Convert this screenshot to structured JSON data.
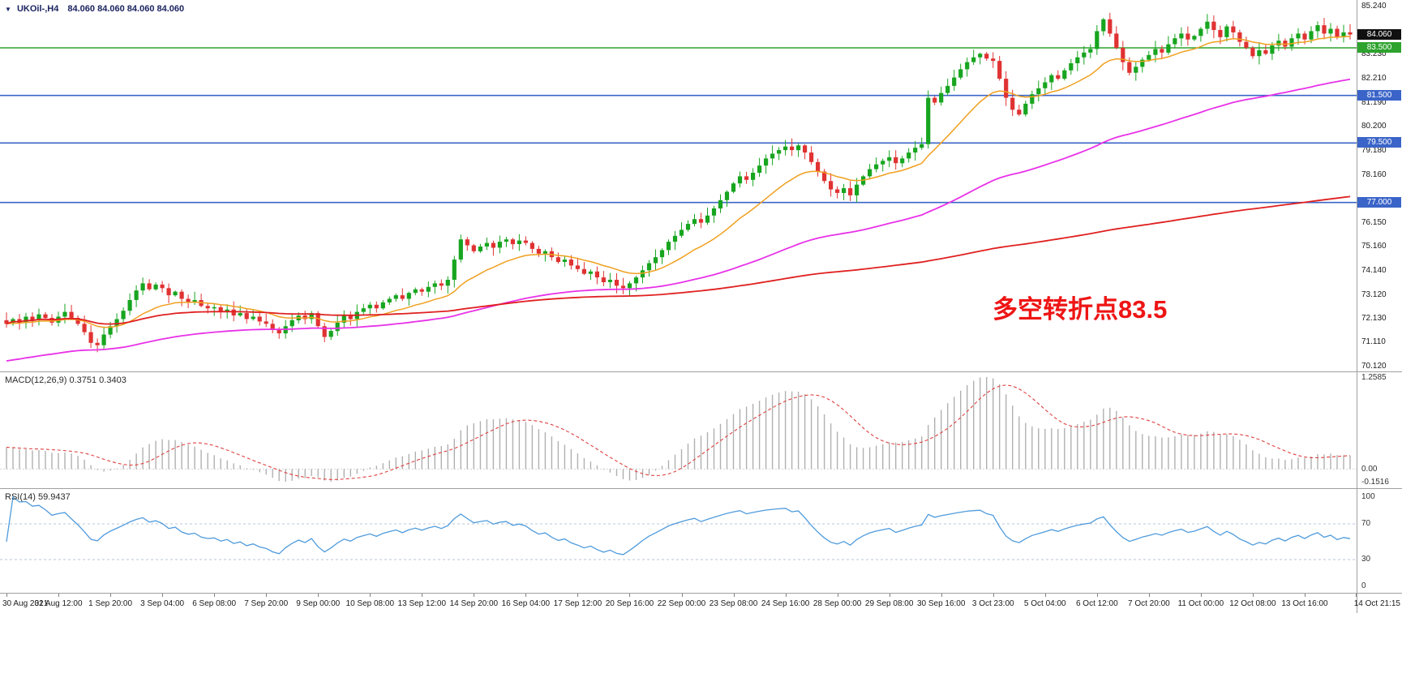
{
  "title_bar": {
    "collapse_icon": "▼",
    "symbol": "UKOil-,H4",
    "ohlc": "84.060 84.060 84.060 84.060"
  },
  "colors": {
    "candle_up": "#17a51f",
    "candle_down": "#e03232",
    "ma_fast": "#f0a020",
    "ma_mid": "#e832e8",
    "ma_slow": "#e02020",
    "macd_bars": "#b0b0b0",
    "macd_signal": "#e04040",
    "rsi_line": "#4f9bdc",
    "green_line": "#2da32d",
    "blue_line": "#3a64c8",
    "current_price_badge": "#101010"
  },
  "main_chart": {
    "annotation": {
      "text": "多空转折点83.5",
      "color": "#ee1515"
    },
    "price_scale": {
      "top": 85.51,
      "bottom": 69.9
    },
    "horizontal_lines": [
      {
        "price": 83.5,
        "label": "83.500",
        "color": "#2da32d"
      },
      {
        "price": 81.5,
        "label": "81.500",
        "color": "#3a64c8"
      },
      {
        "price": 79.5,
        "label": "79.500",
        "color": "#3a64c8"
      },
      {
        "price": 77.0,
        "label": "77.000",
        "color": "#3a64c8"
      }
    ],
    "badges": [
      {
        "label": "84.060",
        "price": 84.06,
        "color": "#101010"
      },
      {
        "label": "83.500",
        "price": 83.5,
        "color": "#2da32d"
      },
      {
        "label": "81.500",
        "price": 81.5,
        "color": "#3a64c8"
      },
      {
        "label": "79.500",
        "price": 79.5,
        "color": "#3a64c8"
      },
      {
        "label": "77.000",
        "price": 77.0,
        "color": "#3a64c8"
      }
    ],
    "price_axis_labels": [
      "85.240",
      "83.230",
      "82.210",
      "81.190",
      "80.200",
      "79.180",
      "78.160",
      "76.150",
      "75.160",
      "74.140",
      "73.120",
      "72.130",
      "71.110",
      "70.120"
    ]
  },
  "macd_panel": {
    "label": "MACD(12,26,9)",
    "values": "0.3751 0.3403",
    "axis_labels": {
      "max": "1.2585",
      "zero": "0.00",
      "min": "-0.1516"
    }
  },
  "rsi_panel": {
    "label": "RSI(14)",
    "value": "59.9437",
    "levels": [
      70,
      30
    ],
    "axis_labels": [
      "100",
      "70",
      "30",
      "0"
    ]
  },
  "time_axis": {
    "labels": [
      "30 Aug 2021",
      "31 Aug 12:00",
      "1 Sep 20:00",
      "3 Sep 04:00",
      "6 Sep 08:00",
      "7 Sep 20:00",
      "9 Sep 00:00",
      "10 Sep 08:00",
      "13 Sep 12:00",
      "14 Sep 20:00",
      "16 Sep 04:00",
      "17 Sep 12:00",
      "20 Sep 16:00",
      "22 Sep 00:00",
      "23 Sep 08:00",
      "24 Sep 16:00",
      "28 Sep 00:00",
      "29 Sep 08:00",
      "30 Sep 16:00",
      "3 Oct 23:00",
      "5 Oct 04:00",
      "6 Oct 12:00",
      "7 Oct 20:00",
      "11 Oct 00:00",
      "12 Oct 08:00",
      "13 Oct 16:00",
      "14 Oct 21:15"
    ]
  },
  "chart_data": {
    "type": "candlestick",
    "symbol": "UKOil-",
    "timeframe": "H4",
    "last_price": 84.06,
    "candles_per_label": 8,
    "ylim": [
      69.9,
      85.51
    ],
    "closes": [
      71.9,
      72.1,
      71.95,
      72.2,
      72.05,
      72.3,
      72.15,
      71.95,
      72.2,
      72.4,
      72.15,
      71.9,
      71.55,
      71.1,
      71.0,
      71.45,
      71.8,
      72.1,
      72.45,
      72.9,
      73.3,
      73.6,
      73.35,
      73.55,
      73.4,
      73.1,
      73.25,
      72.95,
      72.8,
      72.9,
      72.65,
      72.55,
      72.6,
      72.4,
      72.5,
      72.25,
      72.35,
      72.1,
      72.2,
      72.0,
      71.9,
      71.65,
      71.5,
      71.8,
      72.05,
      72.25,
      72.1,
      72.35,
      71.8,
      71.35,
      71.6,
      71.95,
      72.25,
      72.1,
      72.4,
      72.55,
      72.7,
      72.55,
      72.8,
      72.95,
      73.1,
      72.95,
      73.2,
      73.35,
      73.25,
      73.45,
      73.6,
      73.5,
      73.75,
      74.6,
      75.45,
      75.2,
      74.95,
      75.15,
      75.3,
      75.1,
      75.35,
      75.45,
      75.25,
      75.4,
      75.3,
      75.05,
      74.85,
      74.95,
      74.7,
      74.5,
      74.6,
      74.35,
      74.2,
      74.0,
      74.1,
      73.85,
      73.65,
      73.75,
      73.5,
      73.4,
      73.6,
      73.85,
      74.15,
      74.45,
      74.7,
      75.0,
      75.35,
      75.6,
      75.85,
      76.1,
      76.3,
      76.15,
      76.45,
      76.75,
      77.1,
      77.45,
      77.8,
      78.1,
      77.95,
      78.25,
      78.55,
      78.85,
      79.05,
      79.2,
      79.35,
      79.2,
      79.4,
      79.1,
      78.7,
      78.3,
      77.9,
      77.55,
      77.4,
      77.6,
      77.3,
      77.75,
      78.1,
      78.4,
      78.6,
      78.75,
      78.9,
      78.65,
      78.85,
      79.1,
      79.3,
      79.45,
      81.4,
      81.2,
      81.6,
      81.9,
      82.25,
      82.6,
      82.9,
      83.1,
      83.25,
      83.05,
      82.95,
      82.2,
      81.4,
      80.9,
      80.7,
      81.15,
      81.55,
      81.8,
      82.05,
      82.35,
      82.2,
      82.55,
      82.85,
      83.1,
      83.3,
      83.45,
      84.2,
      84.7,
      84.1,
      83.5,
      82.9,
      82.45,
      82.7,
      83.0,
      83.2,
      83.45,
      83.3,
      83.65,
      83.9,
      84.1,
      83.85,
      84.0,
      84.3,
      84.6,
      84.25,
      83.95,
      84.4,
      84.15,
      83.75,
      83.5,
      83.15,
      83.4,
      83.25,
      83.6,
      83.8,
      83.55,
      83.9,
      84.1,
      83.85,
      84.2,
      84.45,
      84.1,
      84.3,
      83.95,
      84.15,
      84.06
    ],
    "moving_averages": [
      {
        "name": "fast-ma",
        "color": "#f0a020",
        "period": 16
      },
      {
        "name": "mid-ma",
        "color": "#e832e8",
        "period": 80
      },
      {
        "name": "slow-ma",
        "color": "#e02020",
        "period": 200
      }
    ],
    "indicators": {
      "macd": {
        "fast": 12,
        "slow": 26,
        "signal": 9,
        "current_macd": 0.3751,
        "current_signal": 0.3403,
        "range": [
          -0.1516,
          1.2585
        ]
      },
      "rsi": {
        "period": 14,
        "current": 59.9437,
        "levels": [
          70,
          30
        ],
        "range": [
          0,
          100
        ]
      }
    }
  }
}
